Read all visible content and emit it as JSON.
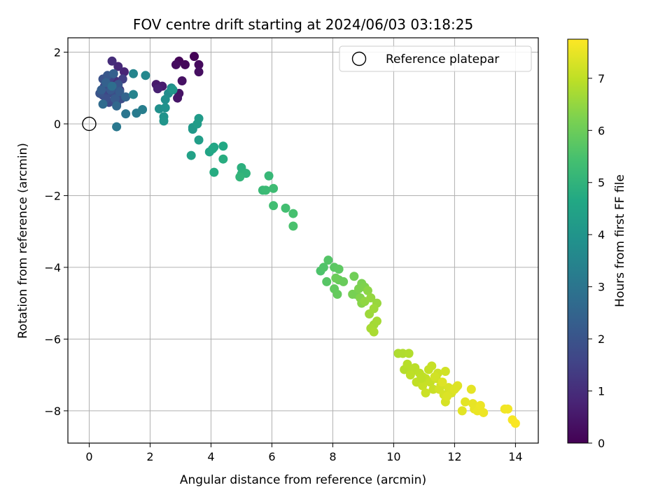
{
  "chart_data": {
    "type": "scatter",
    "title": "FOV centre drift starting at 2024/06/03 03:18:25",
    "xlabel": "Angular distance from reference (arcmin)",
    "ylabel": "Rotation from reference (arcmin)",
    "xlim": [
      -0.7,
      14.75
    ],
    "ylim": [
      -8.9,
      2.4
    ],
    "xticks": [
      0,
      2,
      4,
      6,
      8,
      10,
      12,
      14
    ],
    "yticks": [
      2,
      0,
      -2,
      -4,
      -6,
      -8
    ],
    "xtick_labels": [
      "0",
      "2",
      "4",
      "6",
      "8",
      "10",
      "12",
      "14"
    ],
    "ytick_labels": [
      "2",
      "0",
      "−2",
      "−4",
      "−6",
      "−8"
    ],
    "grid": true,
    "colormap": "viridis",
    "colorbar": {
      "label": "Hours from first FF file",
      "range": [
        0,
        7.75
      ],
      "ticks": [
        0,
        1,
        2,
        3,
        4,
        5,
        6,
        7
      ],
      "tick_labels": [
        "0",
        "1",
        "2",
        "3",
        "4",
        "5",
        "6",
        "7"
      ]
    },
    "legend": {
      "position": "top-right",
      "entries": [
        {
          "label": "Reference platepar",
          "marker": "open-circle"
        }
      ]
    },
    "reference_point": {
      "x": 0,
      "y": 0
    },
    "points": [
      [
        3.45,
        1.88,
        0.05
      ],
      [
        2.95,
        1.75,
        0.1
      ],
      [
        3.15,
        1.65,
        0.15
      ],
      [
        3.6,
        1.65,
        0.2
      ],
      [
        2.85,
        1.65,
        0.25
      ],
      [
        3.6,
        1.45,
        0.3
      ],
      [
        3.05,
        1.2,
        0.35
      ],
      [
        2.95,
        0.85,
        0.4
      ],
      [
        2.9,
        0.72,
        0.45
      ],
      [
        2.2,
        1.1,
        0.55
      ],
      [
        2.4,
        1.05,
        0.6
      ],
      [
        2.25,
        0.98,
        0.7
      ],
      [
        1.15,
        1.45,
        0.8
      ],
      [
        0.95,
        1.6,
        0.9
      ],
      [
        0.75,
        1.75,
        1.0
      ],
      [
        0.85,
        1.2,
        1.1
      ],
      [
        0.6,
        1.1,
        1.2
      ],
      [
        1.0,
        0.95,
        1.25
      ],
      [
        0.9,
        0.75,
        1.3
      ],
      [
        0.55,
        0.9,
        1.4
      ],
      [
        1.1,
        1.25,
        1.45
      ],
      [
        0.7,
        1.3,
        1.5
      ],
      [
        0.5,
        1.05,
        1.55
      ],
      [
        0.8,
        1.0,
        1.6
      ],
      [
        0.45,
        0.8,
        1.65
      ],
      [
        0.65,
        0.6,
        1.7
      ],
      [
        0.9,
        0.55,
        1.75
      ],
      [
        1.05,
        0.7,
        1.8
      ],
      [
        0.75,
        0.85,
        1.85
      ],
      [
        0.55,
        0.7,
        1.9
      ],
      [
        0.45,
        1.25,
        1.95
      ],
      [
        0.35,
        0.85,
        2.0
      ],
      [
        0.95,
        1.1,
        2.05
      ],
      [
        0.6,
        1.35,
        2.1
      ],
      [
        0.7,
        0.95,
        2.15
      ],
      [
        0.85,
        0.7,
        2.2
      ],
      [
        1.0,
        0.9,
        2.25
      ],
      [
        0.4,
        0.95,
        2.3
      ],
      [
        0.8,
        1.4,
        2.35
      ],
      [
        0.55,
        1.15,
        2.4
      ],
      [
        1.2,
        0.75,
        2.5
      ],
      [
        0.9,
        0.5,
        2.6
      ],
      [
        0.45,
        0.55,
        2.7
      ],
      [
        0.75,
        1.05,
        2.8
      ],
      [
        1.2,
        0.28,
        3.0
      ],
      [
        0.9,
        -0.08,
        3.1
      ],
      [
        1.55,
        0.3,
        3.2
      ],
      [
        1.75,
        0.4,
        3.3
      ],
      [
        1.45,
        0.82,
        3.45
      ],
      [
        1.45,
        1.4,
        3.5
      ],
      [
        1.85,
        1.35,
        3.6
      ],
      [
        2.6,
        0.85,
        3.7
      ],
      [
        2.7,
        1.0,
        3.75
      ],
      [
        2.5,
        0.68,
        3.8
      ],
      [
        2.3,
        0.42,
        3.85
      ],
      [
        2.5,
        0.45,
        3.9
      ],
      [
        2.45,
        0.2,
        3.95
      ],
      [
        2.45,
        0.08,
        4.0
      ],
      [
        2.75,
        0.95,
        4.05
      ],
      [
        3.4,
        -0.1,
        4.1
      ],
      [
        3.4,
        -0.15,
        4.15
      ],
      [
        3.6,
        0.15,
        4.2
      ],
      [
        3.55,
        0.0,
        4.25
      ],
      [
        3.6,
        -0.45,
        4.3
      ],
      [
        3.35,
        -0.88,
        4.4
      ],
      [
        3.95,
        -0.78,
        4.5
      ],
      [
        4.1,
        -0.65,
        4.55
      ],
      [
        4.05,
        -0.7,
        4.6
      ],
      [
        4.4,
        -0.62,
        4.65
      ],
      [
        4.1,
        -1.35,
        4.75
      ],
      [
        4.4,
        -0.98,
        4.8
      ],
      [
        5.0,
        -1.22,
        4.9
      ],
      [
        5.0,
        -1.4,
        4.95
      ],
      [
        5.15,
        -1.38,
        5.0
      ],
      [
        4.95,
        -1.48,
        5.05
      ],
      [
        5.9,
        -1.45,
        5.15
      ],
      [
        5.7,
        -1.85,
        5.2
      ],
      [
        5.8,
        -1.85,
        5.25
      ],
      [
        6.05,
        -1.8,
        5.3
      ],
      [
        6.05,
        -2.28,
        5.35
      ],
      [
        6.45,
        -2.35,
        5.4
      ],
      [
        6.7,
        -2.5,
        5.45
      ],
      [
        6.7,
        -2.85,
        5.5
      ],
      [
        7.6,
        -4.1,
        5.55
      ],
      [
        7.7,
        -4.0,
        5.6
      ],
      [
        7.85,
        -3.8,
        5.65
      ],
      [
        7.8,
        -4.4,
        5.7
      ],
      [
        8.05,
        -4.0,
        5.75
      ],
      [
        8.2,
        -4.05,
        5.8
      ],
      [
        8.05,
        -4.6,
        5.85
      ],
      [
        8.15,
        -4.75,
        5.9
      ],
      [
        8.2,
        -4.35,
        5.92
      ],
      [
        8.35,
        -4.4,
        5.95
      ],
      [
        8.1,
        -4.3,
        6.0
      ],
      [
        8.7,
        -4.25,
        6.05
      ],
      [
        8.75,
        -4.75,
        6.1
      ],
      [
        8.65,
        -4.75,
        6.15
      ],
      [
        8.95,
        -4.45,
        6.2
      ],
      [
        8.85,
        -4.6,
        6.22
      ],
      [
        9.05,
        -4.55,
        6.25
      ],
      [
        8.9,
        -4.85,
        6.3
      ],
      [
        8.95,
        -5.0,
        6.35
      ],
      [
        9.15,
        -4.65,
        6.4
      ],
      [
        9.05,
        -4.95,
        6.45
      ],
      [
        9.25,
        -4.85,
        6.5
      ],
      [
        9.45,
        -5.0,
        6.55
      ],
      [
        9.2,
        -5.3,
        6.6
      ],
      [
        9.35,
        -5.15,
        6.62
      ],
      [
        9.35,
        -5.6,
        6.65
      ],
      [
        9.45,
        -5.5,
        6.7
      ],
      [
        9.25,
        -5.7,
        6.72
      ],
      [
        9.35,
        -5.8,
        6.75
      ],
      [
        10.15,
        -6.4,
        6.8
      ],
      [
        10.3,
        -6.4,
        6.82
      ],
      [
        10.5,
        -6.4,
        6.85
      ],
      [
        10.35,
        -6.85,
        6.88
      ],
      [
        10.45,
        -6.7,
        6.9
      ],
      [
        10.6,
        -6.9,
        6.92
      ],
      [
        10.7,
        -6.8,
        6.94
      ],
      [
        10.85,
        -6.95,
        6.96
      ],
      [
        10.55,
        -7.0,
        6.98
      ],
      [
        10.95,
        -7.05,
        7.0
      ],
      [
        10.75,
        -7.2,
        7.02
      ],
      [
        11.05,
        -7.1,
        7.04
      ],
      [
        11.15,
        -6.85,
        7.06
      ],
      [
        11.2,
        -7.2,
        7.08
      ],
      [
        10.95,
        -7.3,
        7.1
      ],
      [
        11.3,
        -7.4,
        7.12
      ],
      [
        11.05,
        -7.5,
        7.14
      ],
      [
        11.4,
        -7.1,
        7.16
      ],
      [
        11.45,
        -6.95,
        7.18
      ],
      [
        11.55,
        -7.3,
        7.2
      ],
      [
        11.35,
        -7.05,
        7.22
      ],
      [
        11.5,
        -7.4,
        7.24
      ],
      [
        11.65,
        -7.55,
        7.26
      ],
      [
        11.7,
        -7.75,
        7.28
      ],
      [
        11.8,
        -7.35,
        7.3
      ],
      [
        11.9,
        -7.5,
        7.32
      ],
      [
        11.75,
        -7.6,
        7.34
      ],
      [
        11.6,
        -7.2,
        7.36
      ],
      [
        12.0,
        -7.4,
        7.38
      ],
      [
        12.1,
        -7.3,
        7.4
      ],
      [
        12.25,
        -8.0,
        7.42
      ],
      [
        12.35,
        -7.75,
        7.44
      ],
      [
        12.55,
        -7.4,
        7.46
      ],
      [
        12.6,
        -7.8,
        7.48
      ],
      [
        12.65,
        -7.95,
        7.5
      ],
      [
        12.75,
        -8.0,
        7.52
      ],
      [
        12.85,
        -7.85,
        7.54
      ],
      [
        12.95,
        -8.05,
        7.56
      ],
      [
        13.65,
        -7.95,
        7.6
      ],
      [
        13.75,
        -7.95,
        7.62
      ],
      [
        13.9,
        -8.25,
        7.66
      ],
      [
        14.0,
        -8.35,
        7.7
      ],
      [
        11.7,
        -6.9,
        7.22
      ],
      [
        10.9,
        -7.1,
        7.0
      ],
      [
        11.25,
        -6.75,
        7.1
      ],
      [
        12.05,
        -7.35,
        7.36
      ]
    ]
  }
}
